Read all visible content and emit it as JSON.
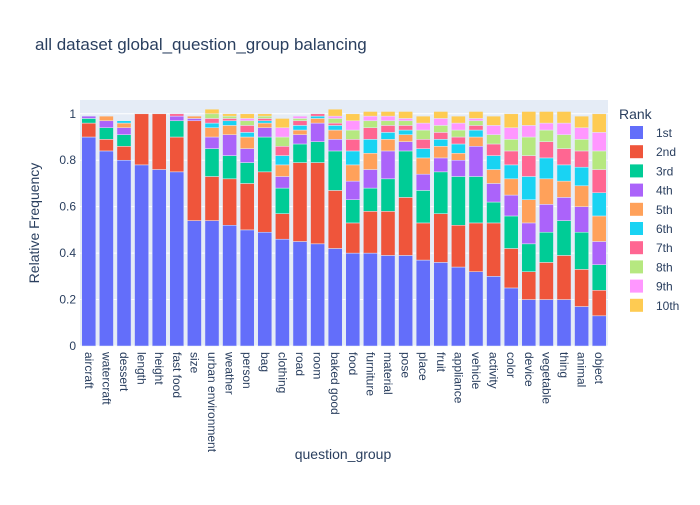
{
  "chart_data": {
    "type": "bar",
    "stacked": true,
    "title": "all dataset global_question_group balancing",
    "xlabel": "question_group",
    "ylabel": "Relative Frequency",
    "ylim": [
      0,
      1
    ],
    "yticks": [
      0,
      0.2,
      0.4,
      0.6,
      0.8,
      1
    ],
    "ytick_labels": [
      "0",
      "0.2",
      "0.4",
      "0.6",
      "0.8",
      "1"
    ],
    "grid": true,
    "legend_title": "Rank",
    "legend_position": "right",
    "categories": [
      "aircraft",
      "watercraft",
      "dessert",
      "length",
      "height",
      "fast food",
      "size",
      "urban environment",
      "weather",
      "person",
      "bag",
      "clothing",
      "road",
      "room",
      "baked good",
      "food",
      "furniture",
      "material",
      "pose",
      "place",
      "fruit",
      "appliance",
      "vehicle",
      "activity",
      "color",
      "device",
      "vegetable",
      "thing",
      "animal",
      "object"
    ],
    "series": [
      {
        "name": "1st",
        "color": "#636efa",
        "values": [
          0.9,
          0.84,
          0.8,
          0.78,
          0.76,
          0.75,
          0.54,
          0.54,
          0.52,
          0.5,
          0.49,
          0.46,
          0.45,
          0.44,
          0.42,
          0.4,
          0.4,
          0.39,
          0.39,
          0.37,
          0.36,
          0.34,
          0.32,
          0.3,
          0.25,
          0.2,
          0.2,
          0.2,
          0.17,
          0.13
        ]
      },
      {
        "name": "2nd",
        "color": "#ef553b",
        "values": [
          0.06,
          0.05,
          0.06,
          0.22,
          0.24,
          0.15,
          0.43,
          0.19,
          0.2,
          0.2,
          0.26,
          0.11,
          0.34,
          0.35,
          0.25,
          0.13,
          0.18,
          0.19,
          0.25,
          0.16,
          0.21,
          0.18,
          0.21,
          0.23,
          0.17,
          0.12,
          0.16,
          0.19,
          0.16,
          0.11
        ]
      },
      {
        "name": "3rd",
        "color": "#00cc96",
        "values": [
          0.02,
          0.05,
          0.05,
          0,
          0,
          0.07,
          0,
          0.12,
          0.1,
          0.09,
          0.15,
          0.11,
          0.08,
          0.09,
          0.17,
          0.1,
          0.1,
          0.14,
          0.2,
          0.14,
          0.18,
          0.21,
          0.2,
          0.09,
          0.14,
          0.12,
          0.13,
          0.15,
          0.16,
          0.11
        ]
      },
      {
        "name": "4th",
        "color": "#ab63fa",
        "values": [
          0.01,
          0.03,
          0.03,
          0,
          0,
          0.02,
          0.01,
          0.05,
          0.09,
          0.06,
          0.04,
          0.05,
          0.04,
          0.08,
          0.05,
          0.08,
          0.08,
          0.12,
          0.04,
          0.07,
          0.06,
          0.07,
          0.13,
          0.08,
          0.09,
          0.09,
          0.12,
          0.1,
          0.11,
          0.1
        ]
      },
      {
        "name": "5th",
        "color": "#ffa15a",
        "values": [
          0,
          0.02,
          0.02,
          0,
          0,
          0,
          0.01,
          0.04,
          0.04,
          0.05,
          0.02,
          0.05,
          0.02,
          0.02,
          0.04,
          0.07,
          0.07,
          0.05,
          0.03,
          0.07,
          0.05,
          0.03,
          0.04,
          0.06,
          0.07,
          0.1,
          0.11,
          0.07,
          0.09,
          0.11
        ]
      },
      {
        "name": "6th",
        "color": "#19d3f3",
        "values": [
          0,
          0,
          0.01,
          0,
          0,
          0,
          0,
          0.02,
          0.02,
          0.02,
          0.01,
          0.04,
          0.02,
          0.01,
          0.02,
          0.06,
          0.06,
          0.03,
          0.02,
          0.04,
          0.03,
          0.04,
          0.03,
          0.06,
          0.06,
          0.1,
          0.09,
          0.07,
          0.08,
          0.1
        ]
      },
      {
        "name": "7th",
        "color": "#ff6692",
        "values": [
          0,
          0,
          0,
          0,
          0,
          0.01,
          0,
          0.02,
          0.01,
          0.03,
          0.01,
          0.04,
          0.02,
          0.01,
          0.01,
          0.05,
          0.05,
          0.03,
          0.02,
          0.04,
          0.03,
          0.03,
          0.02,
          0.05,
          0.06,
          0.09,
          0.07,
          0.07,
          0.07,
          0.1
        ]
      },
      {
        "name": "8th",
        "color": "#b6e880",
        "values": [
          0,
          0,
          0,
          0,
          0,
          0,
          0,
          0.02,
          0.01,
          0.02,
          0.01,
          0.04,
          0.01,
          0,
          0.02,
          0.04,
          0.03,
          0.02,
          0.02,
          0.04,
          0.03,
          0.03,
          0.02,
          0.04,
          0.05,
          0.08,
          0.05,
          0.06,
          0.05,
          0.08
        ]
      },
      {
        "name": "9th",
        "color": "#ff97ff",
        "values": [
          0,
          0,
          0,
          0,
          0,
          0,
          0,
          0,
          0,
          0.01,
          0,
          0.04,
          0.01,
          0,
          0.01,
          0.04,
          0.02,
          0.02,
          0.01,
          0.03,
          0.03,
          0.03,
          0.01,
          0.04,
          0.05,
          0.05,
          0.03,
          0.05,
          0.05,
          0.08
        ]
      },
      {
        "name": "10th",
        "color": "#fecb52",
        "values": [
          0,
          0,
          0,
          0,
          0,
          0,
          0,
          0.02,
          0.01,
          0.02,
          0.01,
          0.04,
          0,
          0,
          0.03,
          0.03,
          0.02,
          0.02,
          0.03,
          0.03,
          0.03,
          0.03,
          0.03,
          0.04,
          0.06,
          0.06,
          0.05,
          0.05,
          0.05,
          0.08
        ]
      }
    ]
  }
}
